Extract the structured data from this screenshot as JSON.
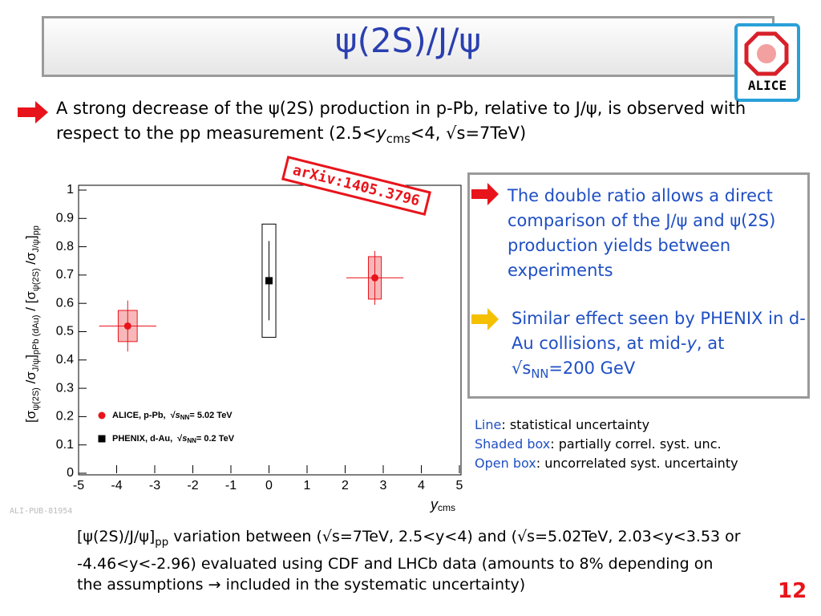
{
  "slide": {
    "title": "ψ(2S)/J/ψ",
    "logo": "ALICE",
    "bullet": [
      "A strong decrease of the ψ(2S) production in p-Pb, relative to J/ψ, is observed with respect to the pp measurement (2.5<",
      "y",
      "cms",
      "<4, √s=7TeV)"
    ],
    "stamp": "arXiv:1405.3796",
    "box_points": [
      [
        "The double ratio allows a direct comparison of the J/ψ and ψ(2S) production yields between experiments"
      ],
      [
        "Similar effect seen by PHENIX in d-Au collisions, at mid-",
        "y",
        ", at √s",
        "NN",
        "=200 GeV"
      ]
    ],
    "notes": [
      [
        "Line",
        ": statistical uncertainty"
      ],
      [
        "Shaded box",
        ": partially correl. syst. unc."
      ],
      [
        "Open box",
        ": uncorrelated syst. uncertainty"
      ]
    ],
    "footnote": [
      "[ψ(2S)/J/ψ]",
      "pp",
      " variation between (√s=7TeV, 2.5<y<4) and (√s=5.02TeV, 2.03<y<3.53 or -4.46<y<-2.96)  evaluated using CDF and LHCb data (amounts to 8% depending on the assumptions → included in the systematic uncertainty)"
    ],
    "page": 12,
    "figure_id": "ALI-PUB-81954"
  },
  "chart_data": {
    "type": "scatter",
    "xlabel": [
      "y",
      "cms"
    ],
    "ylabel": [
      "[σ",
      "ψ(2S)",
      " /σ",
      "J/ψ",
      "]",
      "pPb (dAu)",
      " / [σ",
      "ψ(2S)",
      " /σ",
      "J/ψ",
      "]",
      "pp"
    ],
    "xlim": [
      -5,
      5
    ],
    "xticks": [
      -5,
      -4,
      -3,
      -2,
      -1,
      0,
      1,
      2,
      3,
      4,
      5
    ],
    "ylim": [
      0,
      1
    ],
    "yticks": [
      0,
      0.1,
      0.2,
      0.3,
      0.4,
      0.5,
      0.6,
      0.7,
      0.8,
      0.9,
      1
    ],
    "series": [
      {
        "name": "ALICE, p-Pb,",
        "energy_label": [
          "√",
          "s",
          "NN",
          "= 5.02 TeV"
        ],
        "color": "#e8141b",
        "box": "shaded",
        "x": [
          -3.71,
          2.78
        ],
        "values": [
          0.52,
          0.69
        ],
        "stat_err": [
          0.09,
          0.095
        ],
        "syst_err": [
          0.055,
          0.075
        ],
        "x_err": [
          0.75,
          0.75
        ],
        "box_x_err": [
          0.25,
          0.17
        ]
      },
      {
        "name": "PHENIX, d-Au,",
        "energy_label": [
          "√",
          "s",
          "NN",
          "= 0.2 TeV"
        ],
        "color": "#000000",
        "box": "open",
        "x": [
          0
        ],
        "values": [
          0.68
        ],
        "stat_err": [
          0.14
        ],
        "syst_err": [
          0.2
        ],
        "x_err": [
          0
        ],
        "box_x_err": [
          0.18
        ]
      }
    ]
  }
}
